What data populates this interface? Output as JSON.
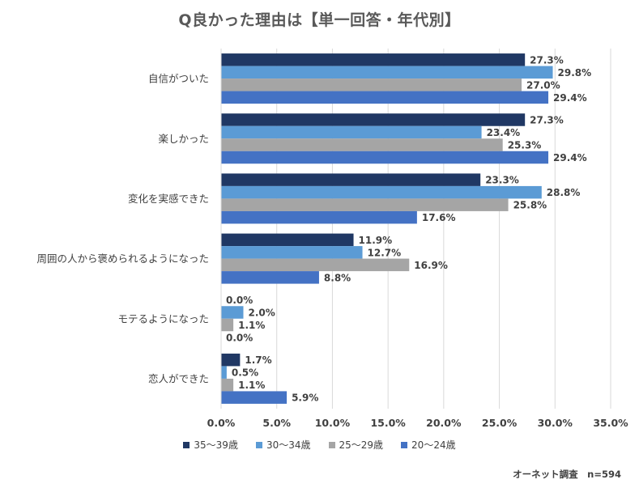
{
  "chart_data": {
    "type": "bar",
    "orientation": "horizontal",
    "title": "Q良かった理由は【単一回答・年代別】",
    "categories": [
      "自信がついた",
      "楽しかった",
      "変化を実感できた",
      "周囲の人から褒められるようになった",
      "モテるようになった",
      "恋人ができた"
    ],
    "series": [
      {
        "name": "35〜39歳",
        "color": "#203864",
        "values": [
          27.3,
          27.3,
          23.3,
          11.9,
          0.0,
          1.7
        ],
        "labels": [
          "27.3%",
          "27.3%",
          "23.3%",
          "11.9%",
          "0.0%",
          "1.7%"
        ]
      },
      {
        "name": "30〜34歳",
        "color": "#5B9BD5",
        "values": [
          29.8,
          23.4,
          28.8,
          12.7,
          2.0,
          0.5
        ],
        "labels": [
          "29.8%",
          "23.4%",
          "28.8%",
          "12.7%",
          "2.0%",
          "0.5%"
        ]
      },
      {
        "name": "25〜29歳",
        "color": "#A5A5A5",
        "values": [
          27.0,
          25.3,
          25.8,
          16.9,
          1.1,
          1.1
        ],
        "labels": [
          "27.0%",
          "25.3%",
          "25.8%",
          "16.9%",
          "1.1%",
          "1.1%"
        ]
      },
      {
        "name": "20〜24歳",
        "color": "#4472C4",
        "values": [
          29.4,
          29.4,
          17.6,
          8.8,
          0.0,
          5.9
        ],
        "labels": [
          "29.4%",
          "29.4%",
          "17.6%",
          "8.8%",
          "0.0%",
          "5.9%"
        ]
      }
    ],
    "xlim": [
      0,
      35
    ],
    "xticks": [
      "0.0%",
      "5.0%",
      "10.0%",
      "15.0%",
      "20.0%",
      "25.0%",
      "30.0%",
      "35.0%"
    ],
    "grid": true,
    "legend_position": "bottom"
  },
  "source": "オーネット調査　n=594"
}
